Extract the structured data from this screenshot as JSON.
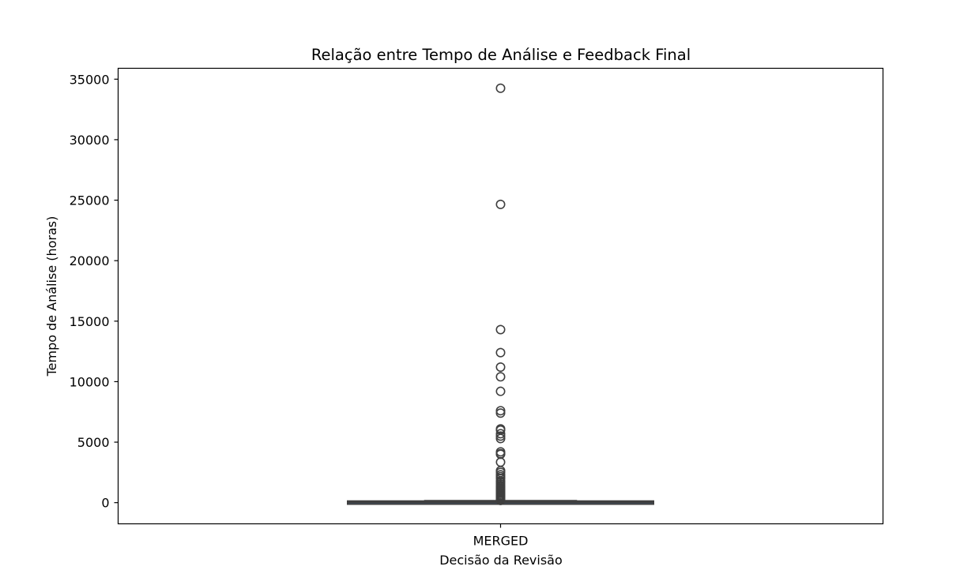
{
  "chart_data": {
    "type": "box",
    "title": "Relação entre Tempo de Análise e Feedback Final",
    "xlabel": "Decisão da Revisão",
    "ylabel": "Tempo de Análise (horas)",
    "categories": [
      "MERGED"
    ],
    "ylim": [
      -1750,
      35900
    ],
    "yticks": [
      0,
      5000,
      10000,
      15000,
      20000,
      25000,
      30000,
      35000
    ],
    "grid": false,
    "box": {
      "category": "MERGED",
      "whisker_low": 0,
      "q1": 2,
      "median": 15,
      "q3": 70,
      "whisker_high": 160
    },
    "outliers": [
      34250,
      24650,
      14300,
      12400,
      11200,
      10400,
      9200,
      7600,
      7400,
      6100,
      6000,
      5700,
      5500,
      5300,
      4200,
      4050,
      4000,
      3350,
      2650,
      2500,
      2300,
      2150,
      2000,
      1800,
      1700,
      1550,
      1400,
      1300,
      1200,
      1100,
      1000,
      900,
      800,
      700,
      600,
      520,
      450,
      400,
      350,
      300,
      260,
      230,
      200,
      180
    ],
    "colors": {
      "box_line": "#3f3f3f",
      "box_fill": "#3a6fa8"
    }
  }
}
